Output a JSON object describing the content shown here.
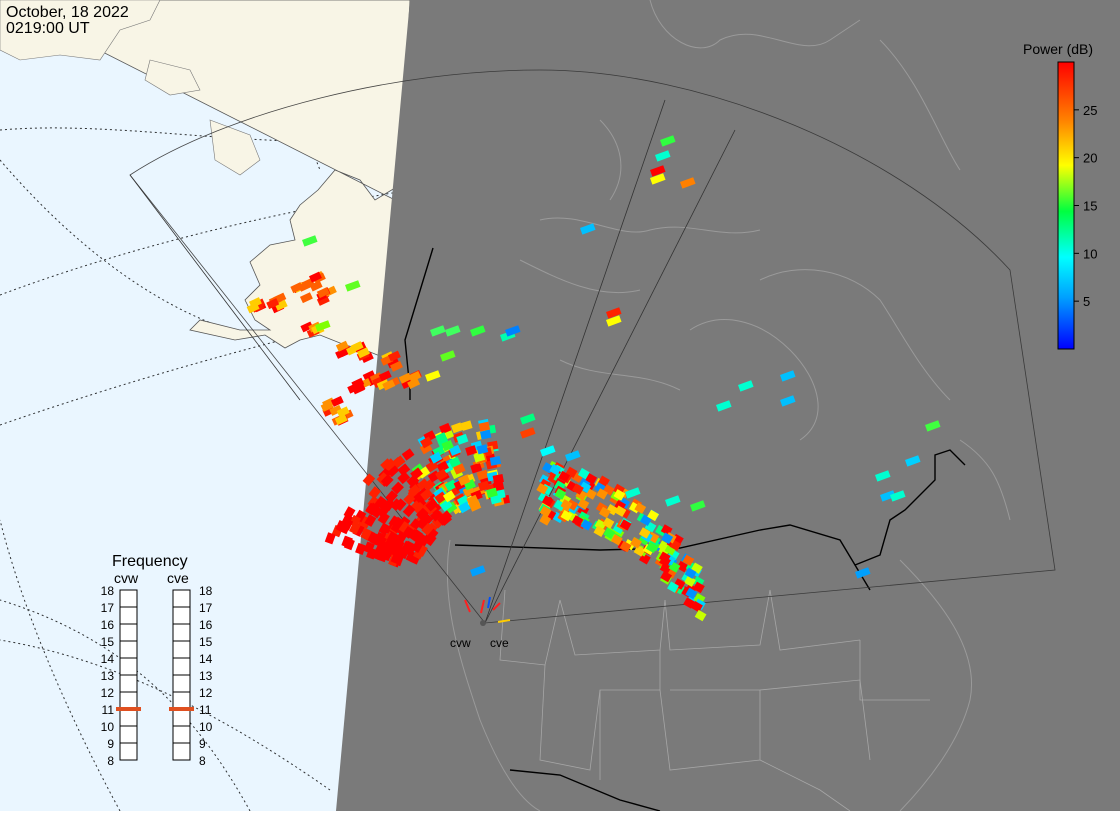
{
  "header": {
    "date": "October, 18 2022",
    "time": "0219:00 UT"
  },
  "colorbar": {
    "title": "Power (dB)",
    "ticks": [
      "25",
      "20",
      "15",
      "10",
      "5"
    ],
    "range": [
      0,
      30
    ],
    "colors": [
      "#0000ff",
      "#00ffff",
      "#00ff00",
      "#ffff00",
      "#ff8000",
      "#ff0000"
    ]
  },
  "frequency_panel": {
    "title": "Frequency",
    "radars": [
      {
        "name": "cvw",
        "selected_mhz": 11
      },
      {
        "name": "cve",
        "selected_mhz": 11
      }
    ],
    "scale": [
      "18",
      "17",
      "16",
      "15",
      "14",
      "13",
      "12",
      "11",
      "10",
      "9",
      "8"
    ],
    "indicator_color": "#e05020"
  },
  "radar_labels": {
    "west": "cvw",
    "east": "cve"
  },
  "map": {
    "ocean_color": "#eaf6ff",
    "night_color": "#7a7a7a",
    "land_day_color": "#f8f5e6",
    "border_color": "#000000",
    "grid_style": "dotted"
  }
}
